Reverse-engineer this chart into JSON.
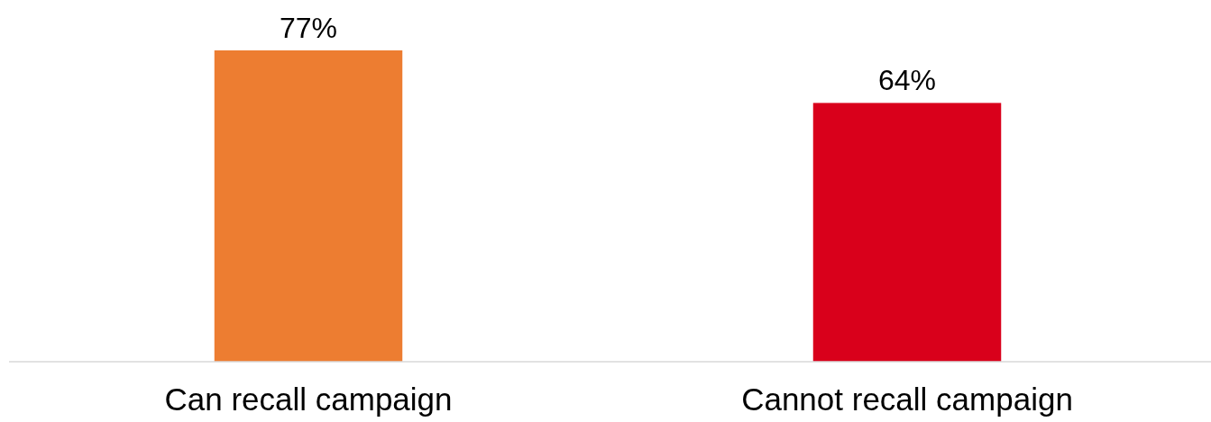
{
  "chart_data": {
    "type": "bar",
    "categories": [
      "Can recall campaign",
      "Cannot recall campaign"
    ],
    "values": [
      77,
      64
    ],
    "colors": [
      "#ed7d31",
      "#d9001b"
    ],
    "value_labels": [
      "77%",
      "64%"
    ]
  }
}
